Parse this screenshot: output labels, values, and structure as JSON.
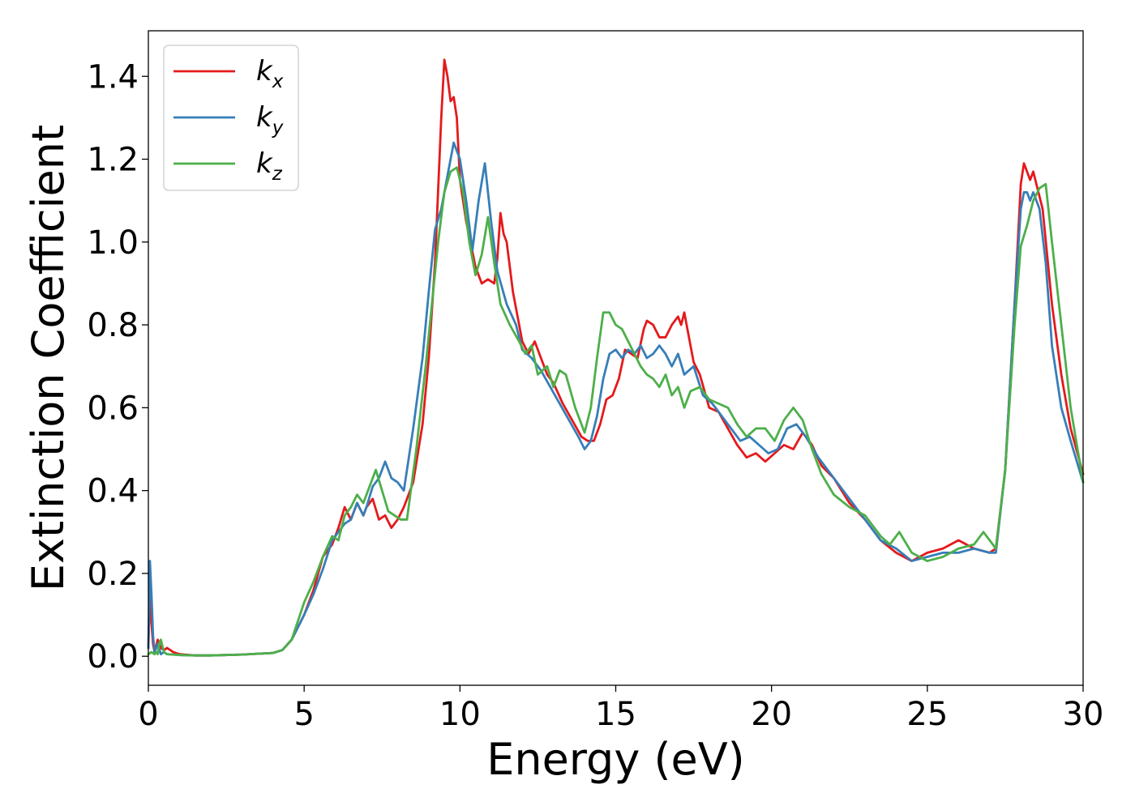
{
  "chart_data": {
    "type": "line",
    "xlabel": "Energy (eV)",
    "ylabel": "Extinction Coefficient",
    "xlim": [
      0,
      30
    ],
    "ylim": [
      -0.07,
      1.51
    ],
    "xticks": [
      0,
      5,
      10,
      15,
      20,
      25,
      30
    ],
    "yticks": [
      0.0,
      0.2,
      0.4,
      0.6,
      0.8,
      1.0,
      1.2,
      1.4
    ],
    "xtick_labels": [
      "0",
      "5",
      "10",
      "15",
      "20",
      "25",
      "30"
    ],
    "ytick_labels": [
      "0.0",
      "0.2",
      "0.4",
      "0.6",
      "0.8",
      "1.0",
      "1.2",
      "1.4"
    ],
    "grid": false,
    "legend_position": "top-left",
    "series": [
      {
        "name": "k_x",
        "label_base": "k",
        "label_sub": "x",
        "color": "#e41a1c",
        "x": [
          0,
          0.05,
          0.1,
          0.15,
          0.2,
          0.3,
          0.4,
          0.5,
          0.6,
          0.8,
          1.0,
          1.5,
          2.0,
          3.0,
          4.0,
          4.3,
          4.6,
          5.0,
          5.3,
          5.6,
          5.9,
          6.1,
          6.3,
          6.5,
          6.7,
          6.9,
          7.0,
          7.2,
          7.4,
          7.6,
          7.8,
          8.0,
          8.2,
          8.5,
          8.8,
          9.0,
          9.2,
          9.4,
          9.5,
          9.6,
          9.7,
          9.8,
          9.9,
          10.0,
          10.2,
          10.5,
          10.7,
          10.9,
          11.1,
          11.2,
          11.3,
          11.4,
          11.5,
          11.7,
          12.0,
          12.2,
          12.4,
          12.6,
          12.8,
          13.0,
          13.3,
          13.6,
          13.9,
          14.1,
          14.3,
          14.5,
          14.7,
          14.9,
          15.1,
          15.3,
          15.5,
          15.7,
          15.9,
          16.0,
          16.2,
          16.4,
          16.6,
          16.8,
          17.0,
          17.1,
          17.2,
          17.3,
          17.5,
          17.7,
          18.0,
          18.3,
          18.6,
          18.9,
          19.2,
          19.5,
          19.8,
          20.1,
          20.4,
          20.7,
          21.0,
          21.3,
          21.6,
          22.0,
          22.5,
          23.0,
          23.5,
          24.0,
          24.5,
          25.0,
          25.5,
          26.0,
          26.5,
          27.0,
          27.2,
          27.5,
          27.8,
          28.0,
          28.1,
          28.2,
          28.3,
          28.4,
          28.5,
          28.7,
          29.0,
          29.3,
          29.6,
          30.0
        ],
        "y": [
          0.02,
          0.16,
          0.08,
          0.03,
          0.01,
          0.04,
          0.02,
          0.015,
          0.02,
          0.01,
          0.005,
          0.002,
          0.002,
          0.004,
          0.008,
          0.015,
          0.04,
          0.1,
          0.16,
          0.24,
          0.27,
          0.31,
          0.36,
          0.33,
          0.37,
          0.34,
          0.36,
          0.38,
          0.33,
          0.34,
          0.31,
          0.33,
          0.36,
          0.42,
          0.56,
          0.72,
          0.95,
          1.3,
          1.44,
          1.4,
          1.34,
          1.35,
          1.3,
          1.15,
          1.05,
          0.94,
          0.9,
          0.91,
          0.9,
          0.96,
          1.07,
          1.02,
          1.0,
          0.88,
          0.76,
          0.73,
          0.76,
          0.72,
          0.68,
          0.66,
          0.61,
          0.57,
          0.53,
          0.52,
          0.52,
          0.56,
          0.62,
          0.63,
          0.67,
          0.74,
          0.73,
          0.72,
          0.79,
          0.81,
          0.8,
          0.77,
          0.77,
          0.8,
          0.82,
          0.8,
          0.83,
          0.79,
          0.71,
          0.68,
          0.6,
          0.59,
          0.55,
          0.51,
          0.48,
          0.49,
          0.47,
          0.49,
          0.51,
          0.5,
          0.54,
          0.51,
          0.46,
          0.43,
          0.37,
          0.33,
          0.28,
          0.25,
          0.23,
          0.25,
          0.26,
          0.28,
          0.26,
          0.25,
          0.26,
          0.45,
          0.85,
          1.14,
          1.19,
          1.17,
          1.15,
          1.17,
          1.14,
          1.08,
          0.85,
          0.68,
          0.55,
          0.44
        ]
      },
      {
        "name": "k_y",
        "label_base": "k",
        "label_sub": "y",
        "color": "#377eb8",
        "x": [
          0,
          0.05,
          0.1,
          0.15,
          0.2,
          0.3,
          0.4,
          0.5,
          0.6,
          0.8,
          1.0,
          1.5,
          2.0,
          3.0,
          4.0,
          4.3,
          4.6,
          5.0,
          5.3,
          5.6,
          5.9,
          6.1,
          6.3,
          6.5,
          6.7,
          6.9,
          7.0,
          7.2,
          7.4,
          7.6,
          7.8,
          8.0,
          8.2,
          8.5,
          8.8,
          9.0,
          9.2,
          9.4,
          9.6,
          9.8,
          10.0,
          10.2,
          10.4,
          10.6,
          10.8,
          11.0,
          11.2,
          11.5,
          11.8,
          12.0,
          12.3,
          12.6,
          12.9,
          13.2,
          13.5,
          13.8,
          14.0,
          14.2,
          14.4,
          14.6,
          14.8,
          15.0,
          15.2,
          15.4,
          15.6,
          15.8,
          16.0,
          16.2,
          16.4,
          16.6,
          16.8,
          17.0,
          17.2,
          17.5,
          17.8,
          18.1,
          18.4,
          18.7,
          19.0,
          19.3,
          19.6,
          19.9,
          20.2,
          20.5,
          20.8,
          21.1,
          21.5,
          22.0,
          22.5,
          23.0,
          23.5,
          24.0,
          24.5,
          25.0,
          25.5,
          26.0,
          26.5,
          27.0,
          27.2,
          27.5,
          27.8,
          28.0,
          28.1,
          28.2,
          28.3,
          28.4,
          28.6,
          28.8,
          29.0,
          29.3,
          29.6,
          30.0
        ],
        "y": [
          0.02,
          0.23,
          0.15,
          0.05,
          0.01,
          0.03,
          0.005,
          0.01,
          0.005,
          0.004,
          0.003,
          0.002,
          0.002,
          0.004,
          0.008,
          0.015,
          0.04,
          0.1,
          0.15,
          0.21,
          0.28,
          0.3,
          0.32,
          0.33,
          0.37,
          0.34,
          0.36,
          0.41,
          0.43,
          0.47,
          0.43,
          0.42,
          0.4,
          0.55,
          0.72,
          0.88,
          1.03,
          1.08,
          1.16,
          1.24,
          1.2,
          1.1,
          0.98,
          1.1,
          1.19,
          1.05,
          0.93,
          0.85,
          0.8,
          0.74,
          0.72,
          0.69,
          0.65,
          0.61,
          0.57,
          0.53,
          0.5,
          0.52,
          0.58,
          0.67,
          0.73,
          0.74,
          0.72,
          0.74,
          0.73,
          0.75,
          0.72,
          0.73,
          0.75,
          0.73,
          0.7,
          0.73,
          0.68,
          0.7,
          0.63,
          0.61,
          0.58,
          0.55,
          0.52,
          0.53,
          0.51,
          0.49,
          0.5,
          0.55,
          0.56,
          0.53,
          0.48,
          0.43,
          0.38,
          0.33,
          0.28,
          0.26,
          0.23,
          0.24,
          0.25,
          0.25,
          0.26,
          0.25,
          0.25,
          0.45,
          0.85,
          1.08,
          1.12,
          1.12,
          1.1,
          1.12,
          1.08,
          0.95,
          0.75,
          0.6,
          0.52,
          0.42
        ]
      },
      {
        "name": "k_z",
        "label_base": "k",
        "label_sub": "z",
        "color": "#4daf4a",
        "x": [
          0,
          0.1,
          0.2,
          0.25,
          0.3,
          0.35,
          0.4,
          0.5,
          0.6,
          0.8,
          1.0,
          1.5,
          2.0,
          3.0,
          4.0,
          4.3,
          4.6,
          5.0,
          5.3,
          5.6,
          5.9,
          6.1,
          6.3,
          6.5,
          6.7,
          6.9,
          7.1,
          7.3,
          7.5,
          7.7,
          7.9,
          8.1,
          8.3,
          8.6,
          8.9,
          9.1,
          9.3,
          9.5,
          9.7,
          9.9,
          10.1,
          10.3,
          10.5,
          10.7,
          10.9,
          11.1,
          11.3,
          11.6,
          11.9,
          12.1,
          12.3,
          12.5,
          12.8,
          13.0,
          13.2,
          13.4,
          13.7,
          14.0,
          14.2,
          14.4,
          14.6,
          14.8,
          15.0,
          15.2,
          15.4,
          15.6,
          15.8,
          16.0,
          16.2,
          16.4,
          16.6,
          16.8,
          17.0,
          17.2,
          17.4,
          17.7,
          18.0,
          18.3,
          18.6,
          18.9,
          19.2,
          19.5,
          19.8,
          20.1,
          20.4,
          20.7,
          21.0,
          21.3,
          21.6,
          22.0,
          22.5,
          23.0,
          23.5,
          23.8,
          24.1,
          24.5,
          25.0,
          25.5,
          26.0,
          26.5,
          26.8,
          27.0,
          27.2,
          27.5,
          27.8,
          28.0,
          28.2,
          28.4,
          28.6,
          28.8,
          29.0,
          29.3,
          29.6,
          30.0
        ],
        "y": [
          0.005,
          0.01,
          0.005,
          0.01,
          0.005,
          0.03,
          0.04,
          0.01,
          0.005,
          0.004,
          0.003,
          0.002,
          0.002,
          0.004,
          0.008,
          0.015,
          0.04,
          0.13,
          0.18,
          0.24,
          0.29,
          0.28,
          0.34,
          0.36,
          0.39,
          0.37,
          0.41,
          0.45,
          0.4,
          0.35,
          0.34,
          0.33,
          0.33,
          0.5,
          0.7,
          0.85,
          1.0,
          1.12,
          1.17,
          1.18,
          1.12,
          1.0,
          0.92,
          0.97,
          1.06,
          0.95,
          0.85,
          0.8,
          0.76,
          0.73,
          0.75,
          0.68,
          0.7,
          0.65,
          0.69,
          0.68,
          0.6,
          0.54,
          0.6,
          0.72,
          0.83,
          0.83,
          0.8,
          0.79,
          0.76,
          0.73,
          0.7,
          0.68,
          0.67,
          0.65,
          0.68,
          0.63,
          0.65,
          0.6,
          0.64,
          0.65,
          0.62,
          0.61,
          0.6,
          0.56,
          0.53,
          0.55,
          0.55,
          0.52,
          0.57,
          0.6,
          0.57,
          0.5,
          0.44,
          0.39,
          0.36,
          0.34,
          0.29,
          0.27,
          0.3,
          0.25,
          0.23,
          0.24,
          0.26,
          0.27,
          0.3,
          0.28,
          0.26,
          0.45,
          0.8,
          0.99,
          1.04,
          1.1,
          1.13,
          1.14,
          1.0,
          0.8,
          0.6,
          0.42
        ]
      }
    ]
  }
}
